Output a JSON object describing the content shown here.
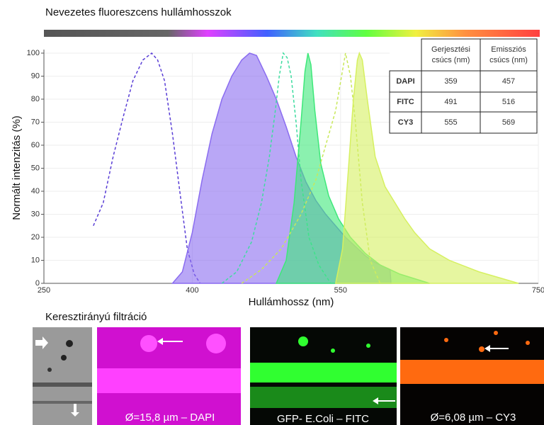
{
  "chart_data": {
    "type": "line",
    "title": "Nevezetes fluoreszcens hullámhosszok",
    "xlabel": "Hullámhossz (nm)",
    "ylabel": "Normált intenzitás (%)",
    "xlim": [
      250,
      750
    ],
    "xticks": [
      250,
      400,
      550,
      750
    ],
    "ylim": [
      0,
      100
    ],
    "yticks": [
      0,
      10,
      20,
      30,
      40,
      50,
      60,
      70,
      80,
      90,
      100
    ],
    "grid": true,
    "series": [
      {
        "color": "#5a3fd6",
        "style": "dashed",
        "x": [
          300,
          310,
          320,
          330,
          340,
          350,
          359,
          365,
          372,
          380,
          388,
          395,
          402,
          408
        ],
        "values": [
          25,
          35,
          55,
          72,
          88,
          97,
          100,
          97,
          88,
          65,
          38,
          15,
          4,
          0
        ]
      },
      {
        "color": "#8a6cf0",
        "style": "filled",
        "x": [
          380,
          390,
          400,
          410,
          420,
          430,
          440,
          450,
          458,
          465,
          475,
          485,
          495,
          505,
          515,
          525,
          535,
          545,
          555,
          565,
          575,
          585,
          595,
          600,
          601
        ],
        "values": [
          0,
          5,
          22,
          45,
          65,
          80,
          90,
          97,
          100,
          99,
          90,
          80,
          68,
          55,
          44,
          36,
          30,
          25,
          20,
          16,
          12,
          9,
          7,
          6,
          0
        ]
      },
      {
        "color": "#3fdca0",
        "style": "dashed",
        "x": [
          430,
          445,
          460,
          470,
          478,
          484,
          488,
          492,
          496,
          500,
          505,
          510,
          518,
          528,
          540
        ],
        "values": [
          0,
          5,
          18,
          35,
          55,
          75,
          90,
          100,
          98,
          90,
          70,
          45,
          20,
          8,
          0
        ]
      },
      {
        "color": "#3ee87a",
        "style": "filled",
        "x": [
          485,
          495,
          503,
          510,
          514,
          517,
          520,
          524,
          530,
          538,
          548,
          560,
          575,
          590,
          610,
          640
        ],
        "values": [
          0,
          10,
          35,
          70,
          92,
          100,
          95,
          75,
          52,
          38,
          28,
          20,
          13,
          8,
          4,
          0
        ]
      },
      {
        "color": "#c8e85a",
        "style": "dashed",
        "x": [
          450,
          470,
          490,
          510,
          525,
          535,
          545,
          551,
          555,
          560,
          565,
          572,
          580,
          590
        ],
        "values": [
          0,
          6,
          15,
          30,
          45,
          60,
          75,
          90,
          100,
          90,
          70,
          35,
          10,
          0
        ]
      },
      {
        "color": "#d6f060",
        "style": "filled",
        "x": [
          545,
          552,
          558,
          563,
          567,
          569,
          572,
          577,
          585,
          595,
          605,
          615,
          625,
          640,
          660,
          690,
          730
        ],
        "values": [
          0,
          15,
          50,
          80,
          97,
          100,
          97,
          80,
          55,
          42,
          35,
          28,
          22,
          15,
          10,
          5,
          0
        ]
      }
    ]
  },
  "table": {
    "columns": [
      [
        "Gerjesztési",
        "csúcs (nm)"
      ],
      [
        "Emissziós",
        "csúcs (nm)"
      ]
    ],
    "rows": [
      [
        "DAPI",
        359,
        457
      ],
      [
        "FITC",
        491,
        516
      ],
      [
        "CY3",
        555,
        569
      ]
    ]
  },
  "section_title": "Keresztirányú filtráció",
  "captions": [
    "Ø=15,8 µm – DAPI",
    "GFP- E.Coli – FITC",
    "Ø=6,08 µm – CY3"
  ]
}
